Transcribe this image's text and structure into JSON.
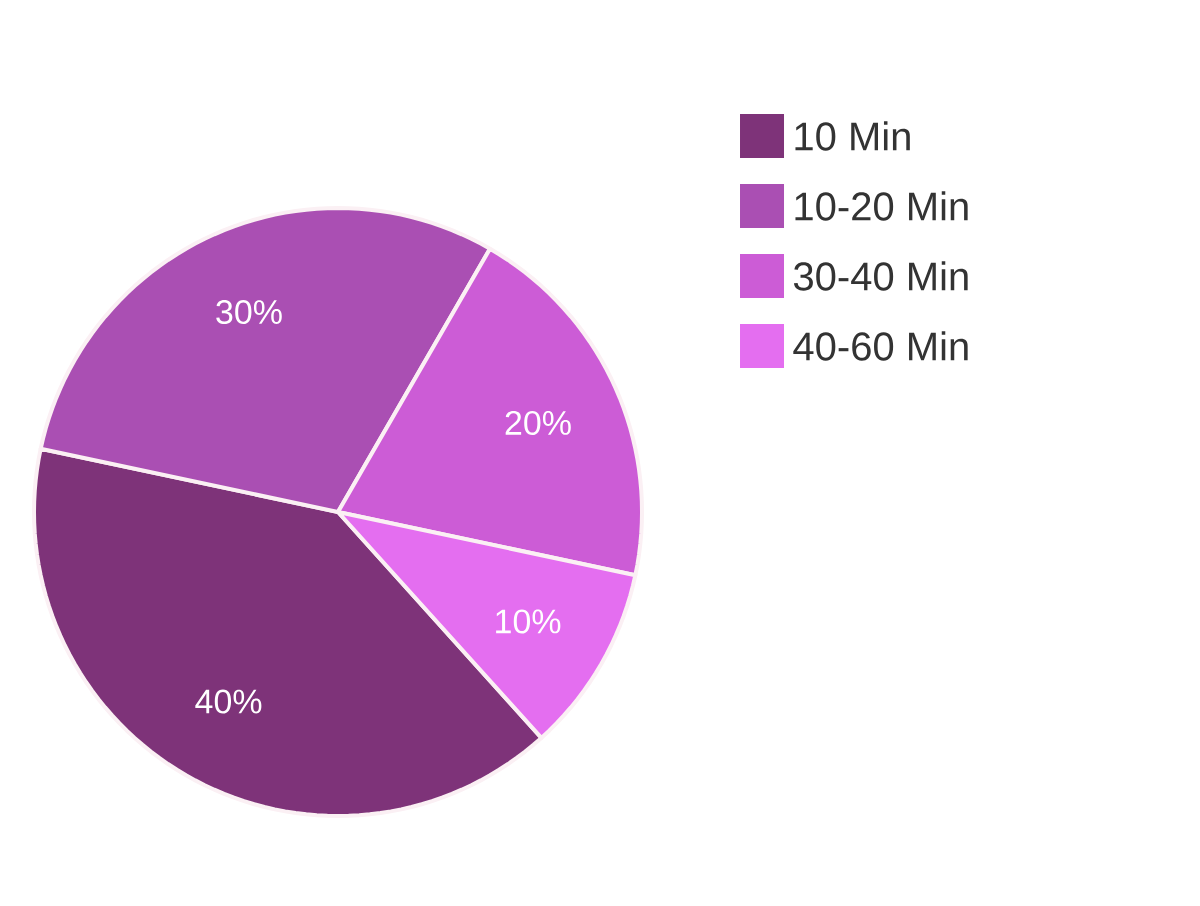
{
  "chart_data": {
    "type": "pie",
    "categories": [
      "10 Min",
      "10-20 Min",
      "30-40 Min",
      "40-60 Min"
    ],
    "values": [
      40,
      30,
      20,
      10
    ],
    "colors": [
      "#7e3379",
      "#aa4fb3",
      "#cc5cd6",
      "#e46ef0"
    ],
    "value_labels": [
      "40%",
      "30%",
      "20%",
      "10%"
    ],
    "legend": "top right"
  }
}
